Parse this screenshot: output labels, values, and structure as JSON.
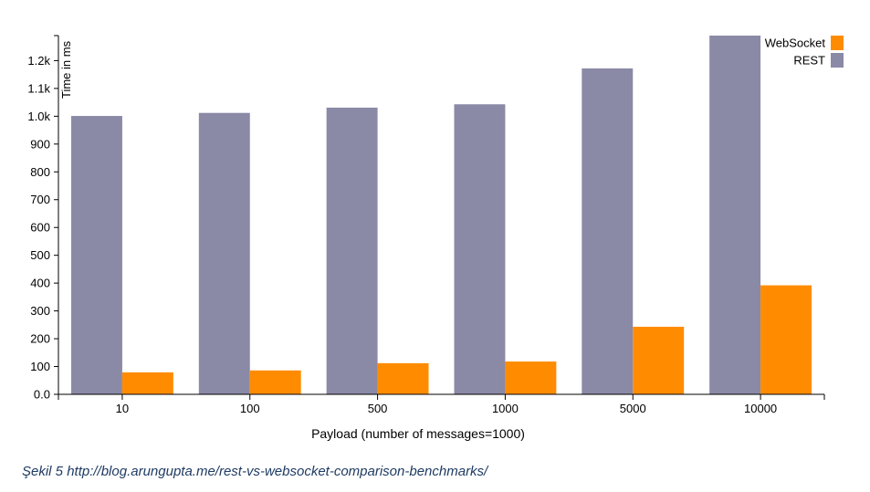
{
  "chart_data": {
    "type": "bar",
    "categories": [
      "10",
      "100",
      "500",
      "1000",
      "5000",
      "10000"
    ],
    "series": [
      {
        "name": "REST",
        "color": "#8a89a6",
        "values": [
          1001,
          1012,
          1031,
          1043,
          1172,
          1290
        ]
      },
      {
        "name": "WebSocket",
        "color": "#ff8c00",
        "values": [
          79,
          86,
          112,
          118,
          243,
          392
        ]
      }
    ],
    "xlabel": "Payload (number of messages=1000)",
    "ylabel": "Time in ms",
    "ylim": [
      0,
      1290
    ],
    "yticks": [
      0,
      100,
      200,
      300,
      400,
      500,
      600,
      700,
      800,
      900,
      1000,
      1100,
      1200
    ],
    "ytick_labels": [
      "0.0",
      "100",
      "200",
      "300",
      "400",
      "500",
      "600",
      "700",
      "800",
      "900",
      "1.0k",
      "1.1k",
      "1.2k"
    ],
    "legend": {
      "placement": "top-right",
      "entries": [
        "WebSocket",
        "REST"
      ]
    },
    "grid": false
  },
  "caption": "Şekil 5 http://blog.arungupta.me/rest-vs-websocket-comparison-benchmarks/"
}
